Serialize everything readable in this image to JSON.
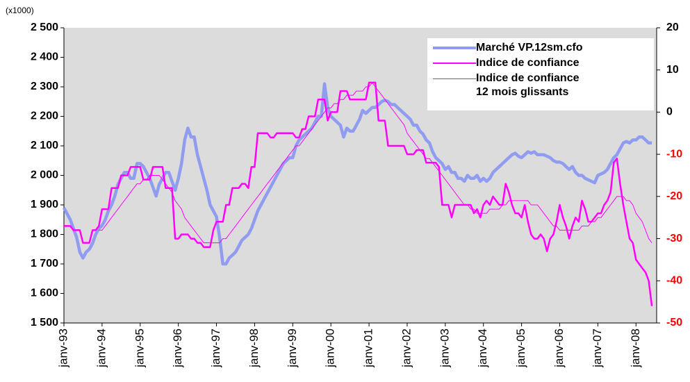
{
  "chart_data": {
    "type": "line",
    "annotations": [
      "(x1000)"
    ],
    "categories": [
      "janv-93",
      null,
      null,
      null,
      null,
      null,
      null,
      null,
      null,
      null,
      null,
      null,
      "janv-94",
      null,
      null,
      null,
      null,
      null,
      null,
      null,
      null,
      null,
      null,
      null,
      "janv-95",
      null,
      null,
      null,
      null,
      null,
      null,
      null,
      null,
      null,
      null,
      null,
      "janv-96",
      null,
      null,
      null,
      null,
      null,
      null,
      null,
      null,
      null,
      null,
      null,
      "janv-97",
      null,
      null,
      null,
      null,
      null,
      null,
      null,
      null,
      null,
      null,
      null,
      "janv-98",
      null,
      null,
      null,
      null,
      null,
      null,
      null,
      null,
      null,
      null,
      null,
      "janv-99",
      null,
      null,
      null,
      null,
      null,
      null,
      null,
      null,
      null,
      null,
      null,
      "janv-00",
      null,
      null,
      null,
      null,
      null,
      null,
      null,
      null,
      null,
      null,
      null,
      "janv-01",
      null,
      null,
      null,
      null,
      null,
      null,
      null,
      null,
      null,
      null,
      null,
      "janv-02",
      null,
      null,
      null,
      null,
      null,
      null,
      null,
      null,
      null,
      null,
      null,
      "janv-03",
      null,
      null,
      null,
      null,
      null,
      null,
      null,
      null,
      null,
      null,
      null,
      "janv-04",
      null,
      null,
      null,
      null,
      null,
      null,
      null,
      null,
      null,
      null,
      null,
      "janv-05",
      null,
      null,
      null,
      null,
      null,
      null,
      null,
      null,
      null,
      null,
      null,
      "janv-06",
      null,
      null,
      null,
      null,
      null,
      null,
      null,
      null,
      null,
      null,
      null,
      "janv-07",
      null,
      null,
      null,
      null,
      null,
      null,
      null,
      null,
      null,
      null,
      null,
      "janv-08",
      null,
      null,
      null,
      null,
      null
    ],
    "series": [
      {
        "name": "Marché VP.12sm.cfo",
        "color": "#8f9cf0",
        "axis": "y",
        "values": [
          1890,
          1870,
          1850,
          1820,
          1790,
          1740,
          1720,
          1740,
          1750,
          1770,
          1800,
          1820,
          1830,
          1850,
          1880,
          1900,
          1930,
          1970,
          1990,
          2010,
          2010,
          1990,
          1990,
          2040,
          2040,
          2030,
          2010,
          1990,
          1960,
          1930,
          1970,
          1990,
          2010,
          2010,
          1980,
          1950,
          1990,
          2040,
          2120,
          2160,
          2130,
          2130,
          2070,
          2030,
          1990,
          1950,
          1900,
          1880,
          1860,
          1790,
          1700,
          1700,
          1720,
          1730,
          1740,
          1760,
          1780,
          1790,
          1800,
          1820,
          1850,
          1880,
          1900,
          1920,
          1940,
          1960,
          1980,
          2000,
          2020,
          2040,
          2050,
          2060,
          2060,
          2100,
          2120,
          2130,
          2140,
          2150,
          2160,
          2180,
          2200,
          2200,
          2310,
          2230,
          2200,
          2190,
          2180,
          2170,
          2130,
          2160,
          2150,
          2150,
          2170,
          2190,
          2220,
          2210,
          2220,
          2230,
          2230,
          2240,
          2250,
          2255,
          2250,
          2240,
          2240,
          2230,
          2220,
          2210,
          2200,
          2190,
          2170,
          2170,
          2150,
          2140,
          2120,
          2110,
          2080,
          2060,
          2050,
          2040,
          2020,
          2030,
          2010,
          2010,
          1990,
          1990,
          1980,
          2000,
          1990,
          1990,
          2000,
          1980,
          1990,
          1980,
          1990,
          2010,
          2020,
          2030,
          2040,
          2050,
          2060,
          2070,
          2075,
          2065,
          2060,
          2070,
          2080,
          2075,
          2080,
          2070,
          2070,
          2070,
          2065,
          2060,
          2050,
          2045,
          2045,
          2040,
          2030,
          2020,
          2030,
          2010,
          2000,
          2000,
          1990,
          1985,
          1980,
          1975,
          2000,
          2005,
          2010,
          2020,
          2040,
          2060,
          2070,
          2090,
          2110,
          2115,
          2110,
          2120,
          2120,
          2130,
          2130,
          2120,
          2110,
          2110
        ]
      },
      {
        "name": "Indice de confiance",
        "color": "#ff00ff",
        "axis": "y2",
        "values": [
          -27,
          -27,
          -27,
          -28,
          -28,
          -28,
          -31,
          -31,
          -31,
          -28,
          -28,
          -27,
          -23,
          -23,
          -23,
          -18,
          -18,
          -18,
          -15,
          -15,
          -15,
          -13,
          -13,
          -13,
          -13,
          -16,
          -16,
          -16,
          -13,
          -13,
          -13,
          -13,
          -18,
          -18,
          -18,
          -30,
          -30,
          -29,
          -29,
          -29,
          -30,
          -30,
          -31,
          -31,
          -32,
          -32,
          -32,
          -28,
          -26,
          -26,
          -26,
          -22,
          -22,
          -18,
          -18,
          -18,
          -17,
          -17,
          -18,
          -13,
          -13,
          -5,
          -5,
          -5,
          -5,
          -6,
          -6,
          -5,
          -5,
          -5,
          -5,
          -5,
          -5,
          -6,
          -6,
          -4,
          -4,
          -1,
          -1,
          -1,
          3,
          3,
          3,
          -2,
          0,
          0,
          0,
          5,
          5,
          5,
          3,
          3,
          3,
          3,
          3,
          3,
          7,
          7,
          7,
          -2,
          -2,
          -2,
          -8,
          -8,
          -8,
          -8,
          -8,
          -8,
          -10,
          -10,
          -10,
          -9,
          -9,
          -9,
          -12,
          -12,
          -12,
          -12,
          -13,
          -22,
          -22,
          -22,
          -25,
          -22,
          -22,
          -22,
          -22,
          -22,
          -22,
          -24,
          -23,
          -25,
          -22,
          -21,
          -22,
          -20,
          -21,
          -22,
          -22,
          -17,
          -19,
          -22,
          -24,
          -24,
          -25,
          -22,
          -26,
          -29,
          -30,
          -30,
          -29,
          -30,
          -33,
          -30,
          -29,
          -26,
          -22,
          -25,
          -27,
          -30,
          -27,
          -25,
          -26,
          -21,
          -23,
          -26,
          -26,
          -25,
          -24,
          -24,
          -22,
          -21,
          -19,
          -12,
          -11,
          -17,
          -22,
          -26,
          -30,
          -31,
          -35,
          -36,
          -37,
          -38,
          -40,
          -46
        ]
      },
      {
        "name": "Indice de confiance\n12 mois glissants",
        "color": "#ff00ff",
        "axis": "y2",
        "values": [
          null,
          null,
          null,
          null,
          null,
          null,
          null,
          null,
          null,
          null,
          null,
          -28,
          -28,
          -27,
          -26,
          -25,
          -24,
          -23,
          -22,
          -21,
          -20,
          -19,
          -18,
          -17,
          -17,
          -16,
          -16,
          -15,
          -15,
          -15,
          -15,
          -16,
          -17,
          -18,
          -19,
          -21,
          -22,
          -23,
          -25,
          -26,
          -27,
          -28,
          -29,
          -30,
          -31,
          -31,
          -31,
          -31,
          -31,
          -31,
          -30,
          -30,
          -29,
          -28,
          -27,
          -26,
          -25,
          -24,
          -23,
          -22,
          -21,
          -20,
          -19,
          -18,
          -17,
          -16,
          -15,
          -14,
          -13,
          -12,
          -11,
          -10,
          -9,
          -8,
          -8,
          -7,
          -6,
          -5,
          -4,
          -3,
          -2,
          -1,
          0,
          1,
          1,
          2,
          2,
          3,
          3,
          4,
          4,
          4,
          5,
          5,
          5,
          6,
          6,
          7,
          6,
          5,
          4,
          3,
          2,
          1,
          0,
          -1,
          -2,
          -3,
          -5,
          -6,
          -7,
          -8,
          -9,
          -10,
          -11,
          -11,
          -12,
          -13,
          -14,
          -15,
          -16,
          -17,
          -18,
          -19,
          -20,
          -21,
          -22,
          -22,
          -23,
          -23,
          -24,
          -24,
          -24,
          -24,
          -23,
          -23,
          -23,
          -23,
          -22,
          -22,
          -21,
          -21,
          -21,
          -21,
          -21,
          -21,
          -21,
          -22,
          -22,
          -22,
          -23,
          -24,
          -25,
          -26,
          -27,
          -27,
          -28,
          -28,
          -28,
          -28,
          -28,
          -28,
          -28,
          -27,
          -27,
          -27,
          -26,
          -26,
          -25,
          -25,
          -24,
          -23,
          -22,
          -21,
          -20,
          -20,
          -20,
          -21,
          -21,
          -22,
          -24,
          -25,
          -26,
          -28,
          -30,
          -31
        ]
      }
    ],
    "ylim": [
      1500,
      2500
    ],
    "yticks": [
      {
        "value": 1500,
        "label": "1 500"
      },
      {
        "value": 1600,
        "label": "1 600"
      },
      {
        "value": 1700,
        "label": "1 700"
      },
      {
        "value": 1800,
        "label": "1 800"
      },
      {
        "value": 1900,
        "label": "1 900"
      },
      {
        "value": 2000,
        "label": "2 000"
      },
      {
        "value": 2100,
        "label": "2 100"
      },
      {
        "value": 2200,
        "label": "2 200"
      },
      {
        "value": 2300,
        "label": "2 300"
      },
      {
        "value": 2400,
        "label": "2 400"
      },
      {
        "value": 2500,
        "label": "2 500"
      }
    ],
    "y2lim": [
      -50,
      20
    ],
    "y2ticks": [
      -50,
      -40,
      -30,
      -20,
      -10,
      0,
      10,
      20
    ],
    "grid": false,
    "legend": "top-right"
  }
}
